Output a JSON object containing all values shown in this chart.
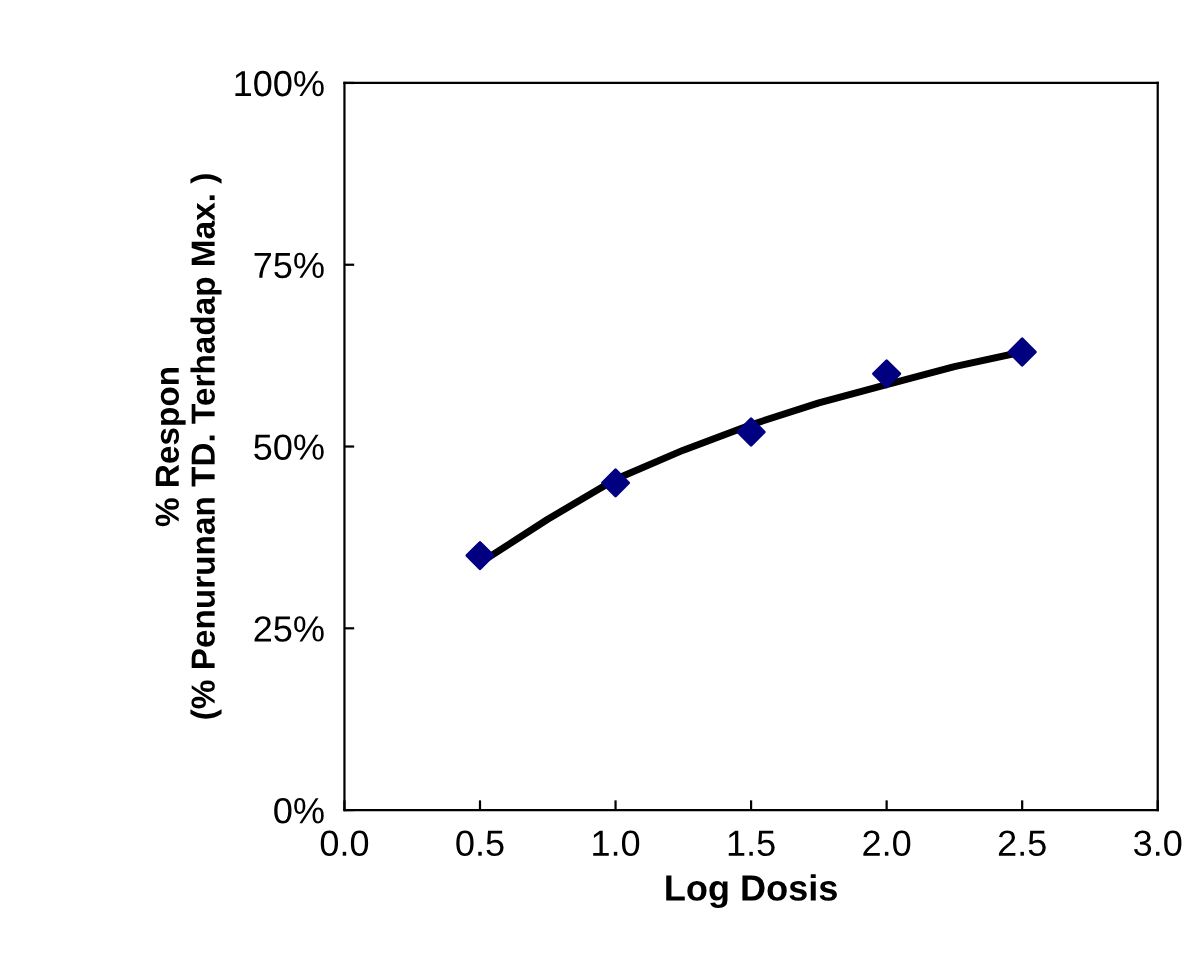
{
  "chart_data": {
    "type": "scatter",
    "xlabel": "Log Dosis",
    "ylabel": "% Respon\n(% Penurunan TD. Terhadap Max. )",
    "xlim": [
      0,
      3
    ],
    "xticks": [
      {
        "value": 0,
        "label": "0.0"
      },
      {
        "value": 0.5,
        "label": "0.5"
      },
      {
        "value": 1,
        "label": "1.0"
      },
      {
        "value": 1.5,
        "label": "1.5"
      },
      {
        "value": 2,
        "label": "2.0"
      },
      {
        "value": 2.5,
        "label": "2.5"
      },
      {
        "value": 3,
        "label": "3.0"
      }
    ],
    "ylim": [
      0,
      100
    ],
    "yticks": [
      {
        "value": 0,
        "label": "0%"
      },
      {
        "value": 25,
        "label": "25%"
      },
      {
        "value": 50,
        "label": "50%"
      },
      {
        "value": 75,
        "label": "75%"
      },
      {
        "value": 100,
        "label": "100%"
      }
    ],
    "series": [
      {
        "type": "line",
        "color": "#000000",
        "marker": "none",
        "x": [
          0.5,
          0.75,
          1.0,
          1.25,
          1.5,
          1.75,
          2.0,
          2.25,
          2.5
        ],
        "values": [
          34,
          40,
          45.5,
          49.5,
          53,
          56,
          58.5,
          61,
          63
        ]
      },
      {
        "color": "#000080",
        "marker": "diamond",
        "x": [
          0.5,
          1.0,
          1.5,
          2.0,
          2.5
        ],
        "values": [
          35,
          45,
          52,
          60,
          63
        ]
      }
    ]
  }
}
